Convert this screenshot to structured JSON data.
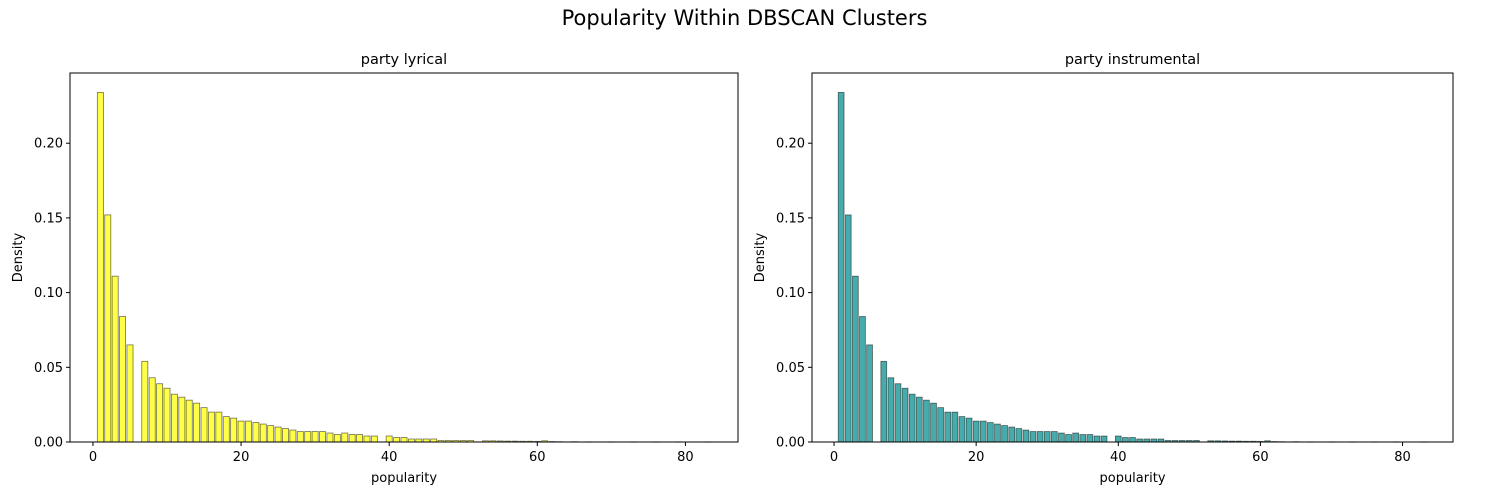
{
  "figure": {
    "title": "Popularity Within DBSCAN Clusters"
  },
  "colors": {
    "lyrical": "#ffff00",
    "instrumental": "#008b8b",
    "edge": "#000000"
  },
  "chart_data": [
    {
      "type": "bar",
      "title": "party lyrical",
      "xlabel": "popularity",
      "ylabel": "Density",
      "xlim": [
        -3.1,
        87.1
      ],
      "ylim": [
        0,
        0.247
      ],
      "xticks": [
        0,
        20,
        40,
        60,
        80
      ],
      "yticks": [
        0.0,
        0.05,
        0.1,
        0.15,
        0.2
      ],
      "ytick_labels": [
        "0.00",
        "0.05",
        "0.10",
        "0.15",
        "0.20"
      ],
      "grid": false,
      "color": "lyrical",
      "bin_width": 0.82,
      "bins": [
        {
          "x": 1,
          "y": 0.234
        },
        {
          "x": 2,
          "y": 0.152
        },
        {
          "x": 3,
          "y": 0.111
        },
        {
          "x": 4,
          "y": 0.084
        },
        {
          "x": 5,
          "y": 0.065
        },
        {
          "x": 7,
          "y": 0.054
        },
        {
          "x": 8,
          "y": 0.043
        },
        {
          "x": 9,
          "y": 0.039
        },
        {
          "x": 10,
          "y": 0.036
        },
        {
          "x": 11,
          "y": 0.032
        },
        {
          "x": 12,
          "y": 0.03
        },
        {
          "x": 13,
          "y": 0.028
        },
        {
          "x": 14,
          "y": 0.026
        },
        {
          "x": 15,
          "y": 0.023
        },
        {
          "x": 16,
          "y": 0.02
        },
        {
          "x": 17,
          "y": 0.02
        },
        {
          "x": 18,
          "y": 0.017
        },
        {
          "x": 19,
          "y": 0.016
        },
        {
          "x": 20,
          "y": 0.014
        },
        {
          "x": 21,
          "y": 0.014
        },
        {
          "x": 22,
          "y": 0.013
        },
        {
          "x": 23,
          "y": 0.012
        },
        {
          "x": 24,
          "y": 0.011
        },
        {
          "x": 25,
          "y": 0.01
        },
        {
          "x": 26,
          "y": 0.009
        },
        {
          "x": 27,
          "y": 0.008
        },
        {
          "x": 28,
          "y": 0.007
        },
        {
          "x": 29,
          "y": 0.007
        },
        {
          "x": 30,
          "y": 0.007
        },
        {
          "x": 31,
          "y": 0.007
        },
        {
          "x": 32,
          "y": 0.006
        },
        {
          "x": 33,
          "y": 0.005
        },
        {
          "x": 34,
          "y": 0.006
        },
        {
          "x": 35,
          "y": 0.005
        },
        {
          "x": 36,
          "y": 0.005
        },
        {
          "x": 37,
          "y": 0.004
        },
        {
          "x": 38,
          "y": 0.004
        },
        {
          "x": 40,
          "y": 0.004
        },
        {
          "x": 41,
          "y": 0.003
        },
        {
          "x": 42,
          "y": 0.003
        },
        {
          "x": 43,
          "y": 0.002
        },
        {
          "x": 44,
          "y": 0.002
        },
        {
          "x": 45,
          "y": 0.002
        },
        {
          "x": 46,
          "y": 0.002
        },
        {
          "x": 47,
          "y": 0.001
        },
        {
          "x": 48,
          "y": 0.001
        },
        {
          "x": 49,
          "y": 0.001
        },
        {
          "x": 50,
          "y": 0.001
        },
        {
          "x": 51,
          "y": 0.001
        },
        {
          "x": 53,
          "y": 0.0008
        },
        {
          "x": 54,
          "y": 0.0008
        },
        {
          "x": 55,
          "y": 0.0007
        },
        {
          "x": 56,
          "y": 0.0006
        },
        {
          "x": 57,
          "y": 0.0006
        },
        {
          "x": 58,
          "y": 0.0005
        },
        {
          "x": 59,
          "y": 0.0005
        },
        {
          "x": 60,
          "y": 0.0004
        },
        {
          "x": 61,
          "y": 0.0008
        },
        {
          "x": 62,
          "y": 0.0003
        },
        {
          "x": 63,
          "y": 0.0002
        },
        {
          "x": 65,
          "y": 0.0002
        },
        {
          "x": 67,
          "y": 0.0001
        },
        {
          "x": 70,
          "y": 0.0001
        },
        {
          "x": 73,
          "y": 0.0001
        },
        {
          "x": 76,
          "y": 0.0001
        },
        {
          "x": 79,
          "y": 0.0001
        },
        {
          "x": 83,
          "y": 0.0001
        }
      ]
    },
    {
      "type": "bar",
      "title": "party instrumental",
      "xlabel": "popularity",
      "ylabel": "Density",
      "xlim": [
        -3.1,
        87.1
      ],
      "ylim": [
        0,
        0.247
      ],
      "xticks": [
        0,
        20,
        40,
        60,
        80
      ],
      "yticks": [
        0.0,
        0.05,
        0.1,
        0.15,
        0.2
      ],
      "ytick_labels": [
        "0.00",
        "0.05",
        "0.10",
        "0.15",
        "0.20"
      ],
      "grid": false,
      "color": "instrumental",
      "bin_width": 0.82,
      "bins": [
        {
          "x": 1,
          "y": 0.234
        },
        {
          "x": 2,
          "y": 0.152
        },
        {
          "x": 3,
          "y": 0.111
        },
        {
          "x": 4,
          "y": 0.084
        },
        {
          "x": 5,
          "y": 0.065
        },
        {
          "x": 7,
          "y": 0.054
        },
        {
          "x": 8,
          "y": 0.043
        },
        {
          "x": 9,
          "y": 0.039
        },
        {
          "x": 10,
          "y": 0.036
        },
        {
          "x": 11,
          "y": 0.032
        },
        {
          "x": 12,
          "y": 0.03
        },
        {
          "x": 13,
          "y": 0.028
        },
        {
          "x": 14,
          "y": 0.026
        },
        {
          "x": 15,
          "y": 0.023
        },
        {
          "x": 16,
          "y": 0.02
        },
        {
          "x": 17,
          "y": 0.02
        },
        {
          "x": 18,
          "y": 0.017
        },
        {
          "x": 19,
          "y": 0.016
        },
        {
          "x": 20,
          "y": 0.014
        },
        {
          "x": 21,
          "y": 0.014
        },
        {
          "x": 22,
          "y": 0.013
        },
        {
          "x": 23,
          "y": 0.012
        },
        {
          "x": 24,
          "y": 0.011
        },
        {
          "x": 25,
          "y": 0.01
        },
        {
          "x": 26,
          "y": 0.009
        },
        {
          "x": 27,
          "y": 0.008
        },
        {
          "x": 28,
          "y": 0.007
        },
        {
          "x": 29,
          "y": 0.007
        },
        {
          "x": 30,
          "y": 0.007
        },
        {
          "x": 31,
          "y": 0.007
        },
        {
          "x": 32,
          "y": 0.006
        },
        {
          "x": 33,
          "y": 0.005
        },
        {
          "x": 34,
          "y": 0.006
        },
        {
          "x": 35,
          "y": 0.005
        },
        {
          "x": 36,
          "y": 0.005
        },
        {
          "x": 37,
          "y": 0.004
        },
        {
          "x": 38,
          "y": 0.004
        },
        {
          "x": 40,
          "y": 0.004
        },
        {
          "x": 41,
          "y": 0.003
        },
        {
          "x": 42,
          "y": 0.003
        },
        {
          "x": 43,
          "y": 0.002
        },
        {
          "x": 44,
          "y": 0.002
        },
        {
          "x": 45,
          "y": 0.002
        },
        {
          "x": 46,
          "y": 0.002
        },
        {
          "x": 47,
          "y": 0.001
        },
        {
          "x": 48,
          "y": 0.001
        },
        {
          "x": 49,
          "y": 0.001
        },
        {
          "x": 50,
          "y": 0.001
        },
        {
          "x": 51,
          "y": 0.001
        },
        {
          "x": 53,
          "y": 0.0008
        },
        {
          "x": 54,
          "y": 0.0008
        },
        {
          "x": 55,
          "y": 0.0007
        },
        {
          "x": 56,
          "y": 0.0006
        },
        {
          "x": 57,
          "y": 0.0006
        },
        {
          "x": 58,
          "y": 0.0005
        },
        {
          "x": 59,
          "y": 0.0005
        },
        {
          "x": 60,
          "y": 0.0004
        },
        {
          "x": 61,
          "y": 0.0008
        },
        {
          "x": 62,
          "y": 0.0003
        },
        {
          "x": 63,
          "y": 0.0002
        },
        {
          "x": 65,
          "y": 0.0002
        },
        {
          "x": 67,
          "y": 0.0001
        },
        {
          "x": 70,
          "y": 0.0001
        },
        {
          "x": 73,
          "y": 0.0001
        },
        {
          "x": 76,
          "y": 0.0001
        },
        {
          "x": 79,
          "y": 0.0001
        },
        {
          "x": 83,
          "y": 0.0001
        }
      ]
    }
  ]
}
